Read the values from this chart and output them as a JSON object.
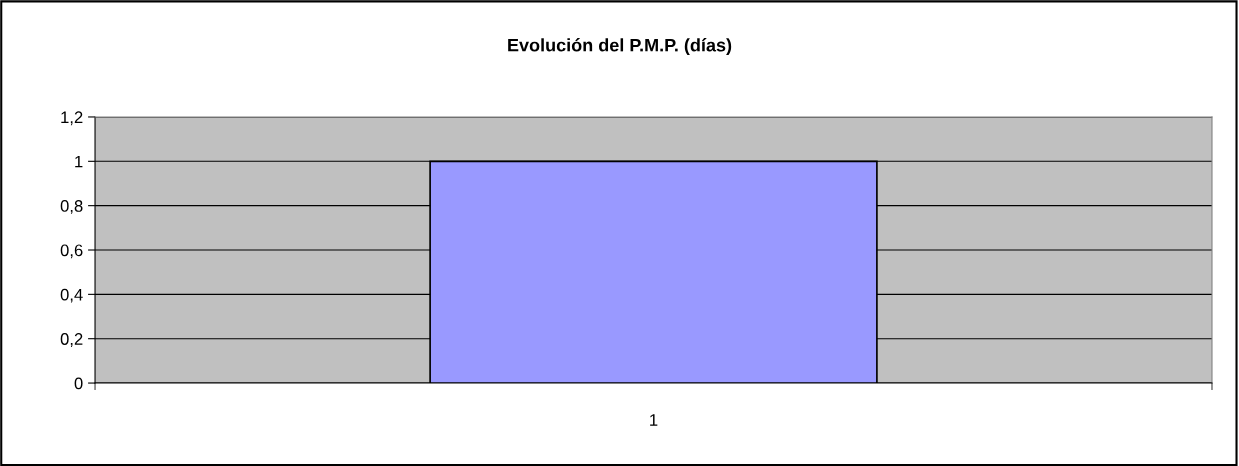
{
  "chart_data": {
    "type": "bar",
    "title": "Evolución del P.M.P. (días)",
    "categories": [
      "1"
    ],
    "series": [
      {
        "color": "#9999ff",
        "values": [
          1
        ]
      }
    ],
    "ylim": [
      0,
      1.2
    ],
    "yticks": [
      0,
      {
        "value": 0.2,
        "label": "0,2"
      },
      {
        "value": 0.4,
        "label": "0,4"
      },
      {
        "value": 0.6,
        "label": "0,6"
      },
      {
        "value": 0.8,
        "label": "0,8"
      },
      1,
      {
        "value": 1.2,
        "label": "1,2"
      }
    ],
    "grid": "y"
  }
}
